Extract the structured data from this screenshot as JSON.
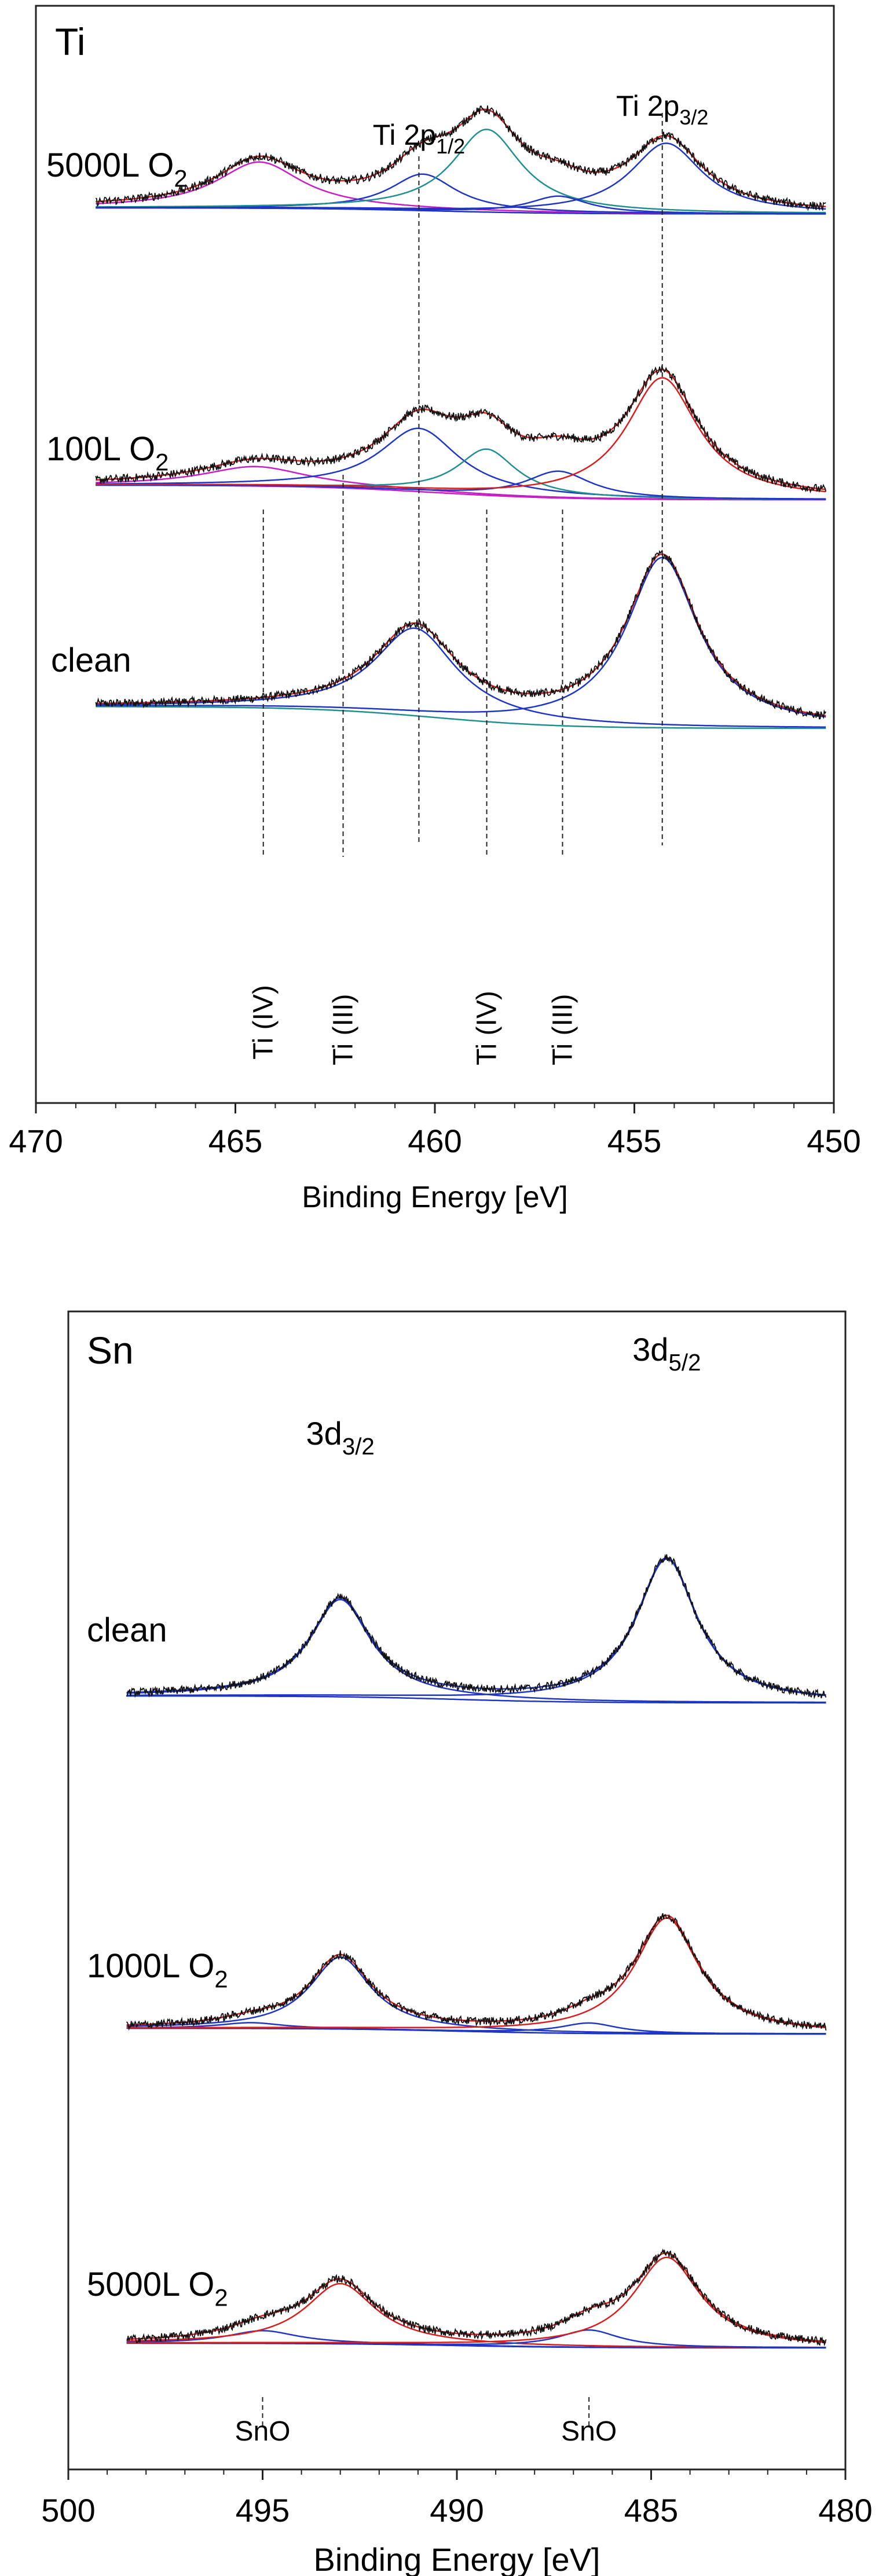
{
  "chart_data": [
    {
      "type": "line",
      "panel_label": "Ti",
      "xlabel": "Binding Energy [eV]",
      "ylabel": "",
      "xlim": [
        470,
        450
      ],
      "x_reversed": true,
      "xticks": [
        "470",
        "465",
        "460",
        "455",
        "450"
      ],
      "yticks": [],
      "peak_labels": [
        {
          "base": "Ti 2p",
          "sub": "1/2",
          "x": 460.4
        },
        {
          "base": "Ti 2p",
          "sub": "3/2",
          "x": 454.3
        }
      ],
      "peak_lines_eV": [
        460.4,
        454.3
      ],
      "oxidation_lines": [
        {
          "x": 464.3,
          "label": "Ti (IV)"
        },
        {
          "x": 462.3,
          "label": "Ti (III)"
        },
        {
          "x": 458.7,
          "label": "Ti (IV)"
        },
        {
          "x": 456.8,
          "label": "Ti (III)"
        }
      ],
      "series": [
        {
          "name": "clean",
          "label_base": "clean",
          "label_sub": "",
          "baseline": 1.0,
          "bg_drop": 0.9,
          "range": [
            468.5,
            450.2
          ],
          "peaks": [
            {
              "pos": 460.5,
              "h": 3.6,
              "w": 1.25,
              "color": "#1f35c6"
            },
            {
              "pos": 454.3,
              "h": 7.0,
              "w": 1.1,
              "color": "#1f35c6"
            }
          ],
          "background_color": "#1f8f8f",
          "envelope_color": "#d81e1e"
        },
        {
          "name": "100L O2",
          "label_base": "100L O",
          "label_sub": "2",
          "baseline": 0.4,
          "bg_drop": 0.6,
          "range": [
            468.5,
            450.2
          ],
          "peaks": [
            {
              "pos": 464.5,
              "h": 0.8,
              "w": 1.6,
              "color": "#c81ec8"
            },
            {
              "pos": 460.4,
              "h": 2.6,
              "w": 1.2,
              "color": "#1f35c6"
            },
            {
              "pos": 458.7,
              "h": 1.9,
              "w": 0.9,
              "color": "#1f8f8f"
            },
            {
              "pos": 456.9,
              "h": 1.1,
              "w": 1.0,
              "color": "#1f35c6"
            },
            {
              "pos": 454.3,
              "h": 5.0,
              "w": 1.1,
              "color": "#d81e1e"
            }
          ],
          "background_color": "#c81ec8",
          "envelope_color": "#d81e1e"
        },
        {
          "name": "5000L O2",
          "label_base": "5000L O",
          "label_sub": "2",
          "baseline": 0.25,
          "bg_drop": 0.25,
          "range": [
            468.5,
            450.2
          ],
          "peaks": [
            {
              "pos": 464.4,
              "h": 1.9,
              "w": 1.3,
              "color": "#c81ec8"
            },
            {
              "pos": 460.3,
              "h": 1.5,
              "w": 1.0,
              "color": "#1f35c6"
            },
            {
              "pos": 458.7,
              "h": 3.4,
              "w": 1.05,
              "color": "#1f8f8f"
            },
            {
              "pos": 456.9,
              "h": 0.7,
              "w": 0.9,
              "color": "#1f35c6"
            },
            {
              "pos": 454.2,
              "h": 2.9,
              "w": 1.1,
              "color": "#1f35c6"
            }
          ],
          "background_color": "#1f35c6",
          "envelope_color": "#d81e1e"
        }
      ]
    },
    {
      "type": "line",
      "panel_label": "Sn",
      "xlabel": "Binding Energy [eV]",
      "ylabel": "",
      "xlim": [
        500,
        480
      ],
      "x_reversed": true,
      "xticks": [
        "500",
        "495",
        "490",
        "485",
        "480"
      ],
      "yticks": [],
      "peak_labels": [
        {
          "base": "3d",
          "sub": "3/2",
          "x": 493.0
        },
        {
          "base": "3d",
          "sub": "5/2",
          "x": 484.6
        }
      ],
      "oxidation_lines": [
        {
          "x": 495.0,
          "label": "SnO"
        },
        {
          "x": 486.6,
          "label": "SnO"
        }
      ],
      "series": [
        {
          "name": "clean",
          "label_base": "clean",
          "label_sub": "",
          "baseline": 0.35,
          "bg_drop": 0.3,
          "range": [
            498.5,
            480.5
          ],
          "peaks": [
            {
              "pos": 493.0,
              "h": 4.2,
              "w": 0.95,
              "color": "#1f35c6"
            },
            {
              "pos": 484.6,
              "h": 6.2,
              "w": 0.95,
              "color": "#1f35c6"
            }
          ],
          "background_color": "#1f35c6",
          "envelope_color": "#1f35c6"
        },
        {
          "name": "1000L O2",
          "label_base": "1000L O",
          "label_sub": "2",
          "baseline": 0.3,
          "bg_drop": 0.25,
          "range": [
            498.5,
            480.5
          ],
          "peaks": [
            {
              "pos": 495.3,
              "h": 0.25,
              "w": 1.0,
              "color": "#1f35c6"
            },
            {
              "pos": 493.0,
              "h": 3.1,
              "w": 0.95,
              "color": "#1f35c6"
            },
            {
              "pos": 486.6,
              "h": 0.45,
              "w": 0.9,
              "color": "#1f35c6"
            },
            {
              "pos": 484.6,
              "h": 5.0,
              "w": 1.0,
              "color": "#d81e1e"
            }
          ],
          "background_color": "#1f35c6",
          "envelope_color": "#d81e1e"
        },
        {
          "name": "5000L O2",
          "label_base": "5000L O",
          "label_sub": "2",
          "baseline": 0.25,
          "bg_drop": 0.2,
          "range": [
            498.5,
            480.5
          ],
          "peaks": [
            {
              "pos": 495.0,
              "h": 0.55,
              "w": 1.1,
              "color": "#1f35c6"
            },
            {
              "pos": 493.0,
              "h": 2.6,
              "w": 1.1,
              "color": "#d81e1e"
            },
            {
              "pos": 486.6,
              "h": 0.75,
              "w": 0.95,
              "color": "#1f35c6"
            },
            {
              "pos": 484.6,
              "h": 3.9,
              "w": 1.05,
              "color": "#d81e1e"
            }
          ],
          "background_color": "#1f35c6",
          "envelope_color": "#d81e1e"
        }
      ]
    }
  ]
}
